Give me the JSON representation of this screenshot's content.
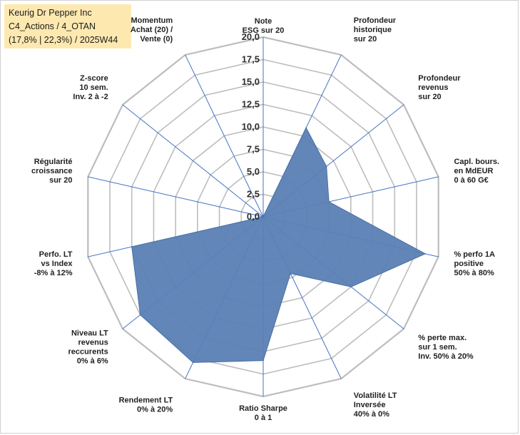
{
  "title": {
    "line1": "Keurig Dr Pepper Inc",
    "line2": "C4_Actions / 4_OTAN",
    "line3": "(17,8% | 22,3%) / 2025W44"
  },
  "chart_data": {
    "type": "radar",
    "rmin": 0,
    "rmax": 20,
    "ticks": [
      "0,0",
      "2,5",
      "5,0",
      "7,5",
      "10,0",
      "12,5",
      "15,0",
      "17,5",
      "20,0"
    ],
    "fill_color": "#5b80b4",
    "grid_color": "#bdbdbd",
    "spoke_color": "#4472c4",
    "axes": [
      {
        "label": [
          "Note",
          "ESG sur 20"
        ],
        "value": 0
      },
      {
        "label": [
          "Profondeur",
          "historique",
          "sur 20"
        ],
        "value": 11
      },
      {
        "label": [
          "Profondeur",
          "revenus",
          "sur 20"
        ],
        "value": 9
      },
      {
        "label": [
          "Capl. bours.",
          "en MdEUR",
          "0 à 60 G€"
        ],
        "value": 7.5
      },
      {
        "label": [
          "% perfo 1A",
          "positive",
          "50% à 80%"
        ],
        "value": 18.5
      },
      {
        "label": [
          "% perte max.",
          "sur 1 sem.",
          "Inv. 50% à 20%"
        ],
        "value": 12.5
      },
      {
        "label": [
          "Volatilité LT",
          "Inversée",
          "40% à 0%"
        ],
        "value": 7
      },
      {
        "label": [
          "Ratio Sharpe",
          "0 à 1"
        ],
        "value": 16
      },
      {
        "label": [
          "Rendement LT",
          "0% à 20%"
        ],
        "value": 18
      },
      {
        "label": [
          "Niveau LT",
          "revenus",
          "reccurents",
          "0% à 6%"
        ],
        "value": 17.5
      },
      {
        "label": [
          "Perfo. LT",
          "vs Index",
          "-8% à 12%"
        ],
        "value": 15
      },
      {
        "label": [
          "Régularité",
          "croissance",
          "sur 20"
        ],
        "value": 0
      },
      {
        "label": [
          "Z-score",
          "10 sem.",
          "Inv. 2 à -2"
        ],
        "value": 0
      },
      {
        "label": [
          "Momentum",
          "Achat (20) /",
          "Vente (0)"
        ],
        "value": 0
      }
    ]
  }
}
